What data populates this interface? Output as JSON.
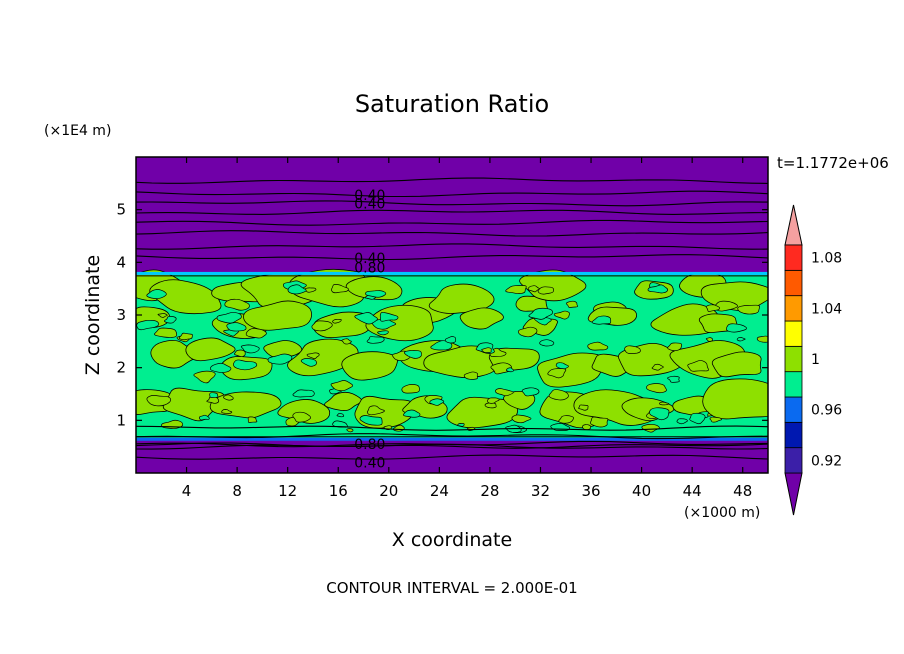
{
  "chart_data": {
    "type": "heatmap",
    "title": "Saturation Ratio",
    "xlabel": "X coordinate",
    "ylabel": "Z coordinate",
    "x_units": "(×1000 m)",
    "y_units": "(×1E4 m)",
    "time_label": "t=1.1772e+06",
    "contour_interval_text": "CONTOUR INTERVAL = 2.000E-01",
    "xlim": [
      0,
      50
    ],
    "ylim": [
      0,
      6
    ],
    "x_ticks": [
      4,
      8,
      12,
      16,
      20,
      24,
      28,
      32,
      36,
      40,
      44,
      48
    ],
    "y_ticks": [
      1,
      2,
      3,
      4,
      5
    ],
    "cloud_layer": {
      "z_bottom": 0.65,
      "z_top": 3.78
    },
    "contour_levels_dry": [
      0.3,
      0.5,
      0.52,
      0.55,
      0.7,
      0.85,
      4.1,
      4.3,
      4.55,
      4.75,
      4.95,
      5.12,
      5.3,
      5.55
    ],
    "contour_labels": [
      {
        "text": "0.40",
        "x": 18.5,
        "z": 5.28
      },
      {
        "text": "0.40",
        "x": 18.5,
        "z": 5.12
      },
      {
        "text": "0.40",
        "x": 18.5,
        "z": 4.08
      },
      {
        "text": "0.80",
        "x": 18.5,
        "z": 3.9
      },
      {
        "text": "0.80",
        "x": 18.5,
        "z": 0.55
      },
      {
        "text": "0.40",
        "x": 18.5,
        "z": 0.2
      }
    ],
    "colorbar": {
      "bins": [
        {
          "color": "#7000a8"
        },
        {
          "color": "#3b1fa8"
        },
        {
          "color": "#0018b0"
        },
        {
          "color": "#0a6af0"
        },
        {
          "color": "#00ee90"
        },
        {
          "color": "#8ee000"
        },
        {
          "color": "#ffff00"
        },
        {
          "color": "#ff9a00"
        },
        {
          "color": "#ff5a00"
        },
        {
          "color": "#ff2a20"
        },
        {
          "color": "#f4a0a0"
        }
      ],
      "tick_labels": [
        "0.92",
        "0.96",
        "1",
        "1.04",
        "1.08"
      ],
      "tick_bin_edges": [
        1,
        3,
        5,
        7,
        9
      ]
    },
    "colors": {
      "dry": "#7000a8",
      "cloud_low": "#00ee90",
      "cloud_high": "#8ee000",
      "edge_blue": "#0a6af0",
      "edge_cyan": "#00c8ff"
    }
  }
}
